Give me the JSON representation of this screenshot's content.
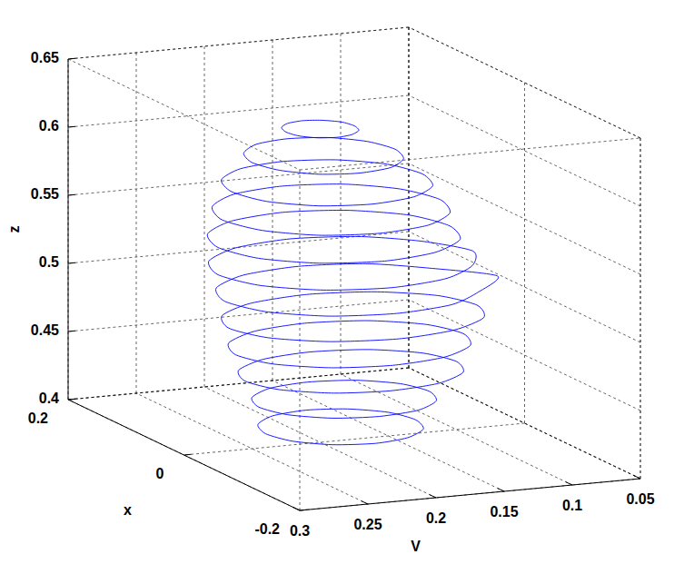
{
  "chart_data": {
    "type": "line3d",
    "x_label": "x",
    "y_label": "V",
    "z_label": "z",
    "color": "#0000ff",
    "grid": true,
    "xlim": [
      -0.2,
      0.2
    ],
    "ylim": [
      0.05,
      0.3
    ],
    "zlim": [
      0.4,
      0.65
    ],
    "xticks": [
      -0.2,
      0,
      0.2
    ],
    "yticks": [
      0.05,
      0.1,
      0.15,
      0.2,
      0.25,
      0.3
    ],
    "zticks": [
      0.4,
      0.45,
      0.5,
      0.55,
      0.6,
      0.65
    ],
    "series": [
      {
        "z": 0.41,
        "x": [
          0,
          0.03,
          0.052,
          0.06,
          0.052,
          0.03,
          0,
          -0.03,
          -0.052,
          -0.06,
          -0.052,
          -0.03
        ],
        "y": [
          0.13,
          0.137,
          0.158,
          0.185,
          0.213,
          0.233,
          0.24,
          0.233,
          0.213,
          0.185,
          0.158,
          0.137
        ]
      },
      {
        "z": 0.43,
        "x": [
          0,
          0.031,
          0.054,
          0.062,
          0.054,
          0.031,
          0,
          -0.031,
          -0.054,
          -0.062,
          -0.054,
          -0.031
        ],
        "y": [
          0.12,
          0.128,
          0.151,
          0.183,
          0.214,
          0.237,
          0.245,
          0.237,
          0.214,
          0.183,
          0.151,
          0.128
        ]
      },
      {
        "z": 0.45,
        "x": [
          0,
          0.035,
          0.061,
          0.07,
          0.061,
          0.035,
          0,
          -0.035,
          -0.061,
          -0.07,
          -0.061,
          -0.035
        ],
        "y": [
          0.1,
          0.11,
          0.139,
          0.178,
          0.216,
          0.245,
          0.255,
          0.245,
          0.216,
          0.178,
          0.139,
          0.11
        ]
      },
      {
        "z": 0.47,
        "x": [
          0,
          0.038,
          0.066,
          0.076,
          0.066,
          0.038,
          0,
          -0.038,
          -0.066,
          -0.076,
          -0.066,
          -0.038
        ],
        "y": [
          0.095,
          0.106,
          0.137,
          0.179,
          0.22,
          0.251,
          0.262,
          0.251,
          0.22,
          0.179,
          0.137,
          0.106
        ]
      },
      {
        "z": 0.49,
        "x": [
          0,
          0.04,
          0.069,
          0.08,
          0.069,
          0.04,
          0,
          -0.04,
          -0.069,
          -0.08,
          -0.069,
          -0.04
        ],
        "y": [
          0.085,
          0.097,
          0.131,
          0.176,
          0.222,
          0.255,
          0.267,
          0.255,
          0.222,
          0.176,
          0.131,
          0.097
        ]
      },
      {
        "z": 0.51,
        "x": [
          0,
          0.043,
          0.074,
          0.085,
          0.074,
          0.043,
          0,
          -0.043,
          -0.074,
          -0.085,
          -0.074,
          -0.043
        ],
        "y": [
          0.07,
          0.102,
          0.135,
          0.18,
          0.225,
          0.258,
          0.27,
          0.258,
          0.225,
          0.18,
          0.135,
          0.102
        ]
      },
      {
        "z": 0.53,
        "x": [
          0,
          0.044,
          0.076,
          0.088,
          0.076,
          0.044,
          0,
          -0.044,
          -0.076,
          -0.088,
          -0.076,
          -0.044
        ],
        "y": [
          0.088,
          0.107,
          0.14,
          0.185,
          0.23,
          0.263,
          0.275,
          0.263,
          0.23,
          0.185,
          0.14,
          0.107
        ]
      },
      {
        "z": 0.55,
        "x": [
          0,
          0.044,
          0.076,
          0.088,
          0.076,
          0.044,
          0,
          -0.044,
          -0.076,
          -0.088,
          -0.076,
          -0.044
        ],
        "y": [
          0.105,
          0.116,
          0.148,
          0.19,
          0.233,
          0.264,
          0.275,
          0.264,
          0.233,
          0.19,
          0.148,
          0.116
        ]
      },
      {
        "z": 0.57,
        "x": [
          0,
          0.043,
          0.074,
          0.085,
          0.074,
          0.043,
          0,
          -0.043,
          -0.074,
          -0.085,
          -0.074,
          -0.043
        ],
        "y": [
          0.112,
          0.123,
          0.152,
          0.192,
          0.232,
          0.261,
          0.272,
          0.261,
          0.232,
          0.192,
          0.152,
          0.123
        ]
      },
      {
        "z": 0.59,
        "x": [
          0,
          0.039,
          0.067,
          0.077,
          0.067,
          0.039,
          0,
          -0.039,
          -0.067,
          -0.077,
          -0.067,
          -0.039
        ],
        "y": [
          0.125,
          0.134,
          0.16,
          0.195,
          0.23,
          0.256,
          0.265,
          0.256,
          0.23,
          0.195,
          0.16,
          0.134
        ]
      },
      {
        "z": 0.61,
        "x": [
          0,
          0.031,
          0.054,
          0.062,
          0.054,
          0.031,
          0,
          -0.031,
          -0.054,
          -0.062,
          -0.054,
          -0.031
        ],
        "y": [
          0.145,
          0.152,
          0.171,
          0.198,
          0.224,
          0.243,
          0.25,
          0.243,
          0.224,
          0.198,
          0.171,
          0.152
        ]
      },
      {
        "z": 0.63,
        "x": [
          0,
          0.015,
          0.026,
          0.03,
          0.026,
          0.015,
          0,
          -0.015,
          -0.026,
          -0.03,
          -0.026,
          -0.015
        ],
        "y": [
          0.175,
          0.178,
          0.188,
          0.2,
          0.213,
          0.222,
          0.225,
          0.222,
          0.213,
          0.2,
          0.188,
          0.178
        ]
      }
    ]
  }
}
